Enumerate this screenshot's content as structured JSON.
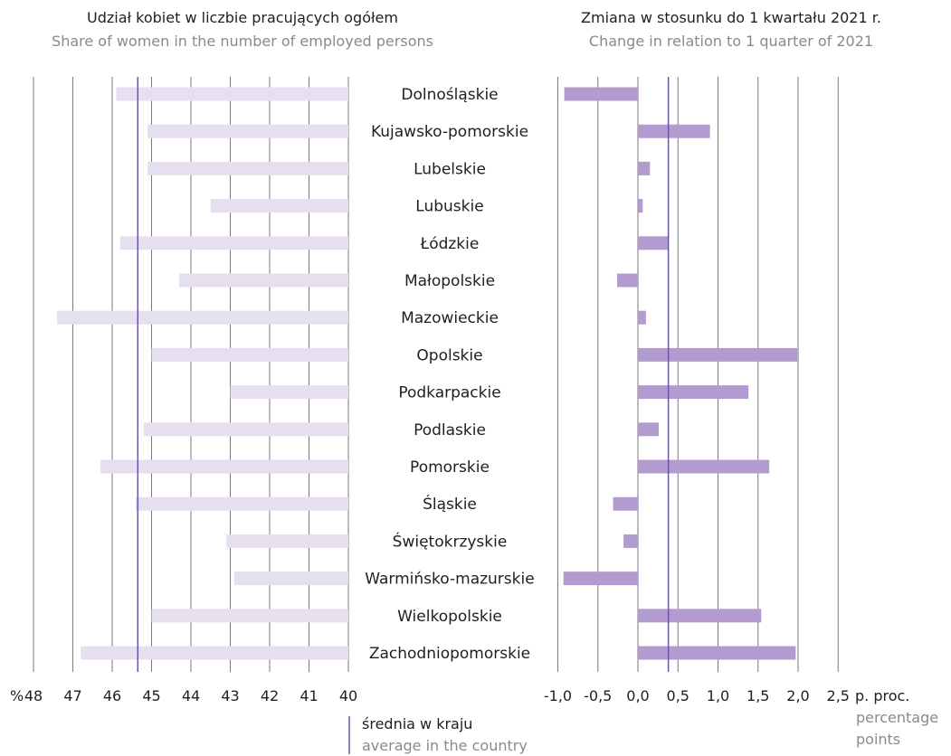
{
  "colors": {
    "left_bar": "#e6dff0",
    "right_bar": "#b49bcf",
    "average_line": "#6a55a8",
    "grid": "#7a7a7a"
  },
  "titles": {
    "left_main": "Udział kobiet w liczbie pracujących ogółem",
    "left_sub": "Share of women in the number of employed persons",
    "right_main": "Zmiana  w stosunku do 1 kwartału 2021 r.",
    "right_sub": "Change in relation to 1 quarter of 2021"
  },
  "axis": {
    "left_unit": "%",
    "right_unit": "p. proc.",
    "right_unit_sub_1": "percentage",
    "right_unit_sub_2": "points"
  },
  "legend": {
    "main": "średnia w kraju",
    "sub": "average in the country"
  },
  "chart_data": [
    {
      "type": "bar",
      "orientation": "horizontal",
      "title": "Udział kobiet w liczbie pracujących ogółem",
      "subtitle": "Share of women in the number of employed persons",
      "unit": "%",
      "axis_reversed": true,
      "xlim": [
        40,
        48.5
      ],
      "ticks": [
        48,
        47,
        46,
        45,
        44,
        43,
        42,
        41,
        40
      ],
      "tick_labels": [
        "48",
        "47",
        "46",
        "45",
        "44",
        "43",
        "42",
        "41",
        "40"
      ],
      "categories": [
        "Dolnośląskie",
        "Kujawsko-pomorskie",
        "Lubelskie",
        "Lubuskie",
        "Łódzkie",
        "Małopolskie",
        "Mazowieckie",
        "Opolskie",
        "Podkarpackie",
        "Podlaskie",
        "Pomorskie",
        "Śląskie",
        "Świętokrzyskie",
        "Warmińsko-mazurskie",
        "Wielkopolskie",
        "Zachodniopomorskie"
      ],
      "values": [
        45.9,
        45.1,
        45.1,
        43.5,
        45.8,
        44.3,
        47.4,
        45.0,
        43.0,
        45.2,
        46.3,
        45.4,
        43.1,
        42.9,
        45.0,
        46.8
      ],
      "average": 45.35,
      "grid": true
    },
    {
      "type": "bar",
      "orientation": "horizontal",
      "title": "Zmiana  w stosunku do 1 kwartału 2021 r.",
      "subtitle": "Change in relation to 1 quarter of 2021",
      "unit": "p. proc.",
      "xlim": [
        -1.0,
        2.5
      ],
      "ticks": [
        -1.0,
        -0.5,
        0.0,
        0.5,
        1.0,
        1.5,
        2.0,
        2.5
      ],
      "tick_labels": [
        "-1,0",
        "-0,5",
        "0,0",
        "0,5",
        "1,0",
        "1,5",
        "2,0",
        "2,5"
      ],
      "categories": [
        "Dolnośląskie",
        "Kujawsko-pomorskie",
        "Lubelskie",
        "Lubuskie",
        "Łódzkie",
        "Małopolskie",
        "Mazowieckie",
        "Opolskie",
        "Podkarpackie",
        "Podlaskie",
        "Pomorskie",
        "Śląskie",
        "Świętokrzyskie",
        "Warmińsko-mazurskie",
        "Wielkopolskie",
        "Zachodniopomorskie"
      ],
      "values": [
        -0.92,
        0.9,
        0.15,
        0.06,
        0.38,
        -0.26,
        0.1,
        1.99,
        1.38,
        0.26,
        1.64,
        -0.31,
        -0.18,
        -0.93,
        1.54,
        1.97
      ],
      "average": 0.38,
      "grid": true
    }
  ]
}
